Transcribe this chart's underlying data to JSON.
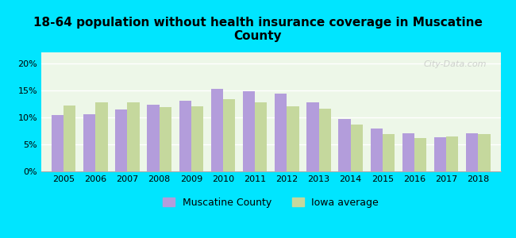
{
  "title": "18-64 population without health insurance coverage in Muscatine\nCounty",
  "years": [
    2005,
    2006,
    2007,
    2008,
    2009,
    2010,
    2011,
    2012,
    2013,
    2014,
    2015,
    2016,
    2017,
    2018
  ],
  "muscatine": [
    10.4,
    10.6,
    11.4,
    12.3,
    13.1,
    15.3,
    14.8,
    14.4,
    12.7,
    9.7,
    7.9,
    7.0,
    6.3,
    7.1
  ],
  "iowa": [
    12.2,
    12.7,
    12.7,
    11.9,
    12.0,
    13.4,
    12.8,
    12.1,
    11.6,
    8.7,
    6.9,
    6.1,
    6.5,
    6.9
  ],
  "muscatine_color": "#b39ddb",
  "iowa_color": "#c5d89d",
  "background_outer": "#00e5ff",
  "background_inner": "#edf7e8",
  "ylim": [
    0,
    22
  ],
  "yticks": [
    0,
    5,
    10,
    15,
    20
  ],
  "bar_width": 0.38,
  "legend_muscatine": "Muscatine County",
  "legend_iowa": "Iowa average",
  "watermark": "City-Data.com"
}
